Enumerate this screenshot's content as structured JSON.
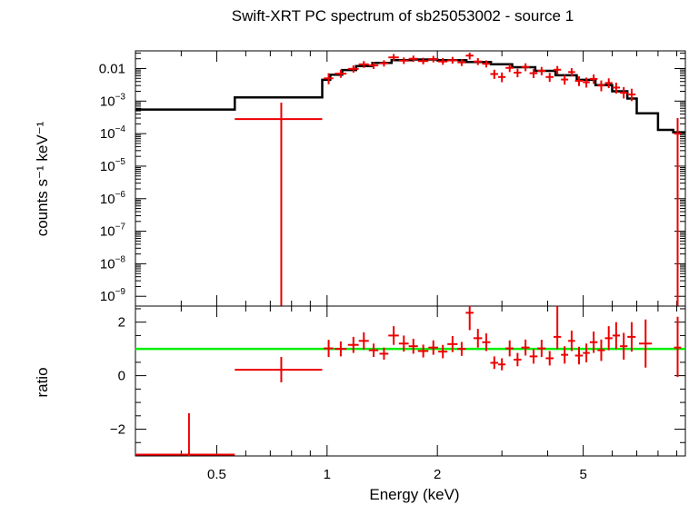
{
  "title": "Swift-XRT PC spectrum of sb25053002 - source 1",
  "colors": {
    "data": "#ee0000",
    "model": "#000000",
    "ratio_line": "#00ee00",
    "axes": "#000000"
  },
  "chart_data": [
    {
      "type": "line",
      "panel": "spectrum",
      "xlabel": "Energy (keV)",
      "ylabel": "counts s⁻¹ keV⁻¹",
      "xscale": "log",
      "yscale": "log",
      "xlim": [
        0.3,
        9.5
      ],
      "ylim": [
        5e-10,
        0.035
      ],
      "ytick_labels": [
        {
          "value": 0.01,
          "label": "0.01",
          "base": "",
          "exp": ""
        },
        {
          "value": 0.001,
          "label": "",
          "base": "10",
          "exp": "−3"
        },
        {
          "value": 0.0001,
          "label": "",
          "base": "10",
          "exp": "−4"
        },
        {
          "value": 1e-05,
          "label": "",
          "base": "10",
          "exp": "−5"
        },
        {
          "value": 1e-06,
          "label": "",
          "base": "10",
          "exp": "−6"
        },
        {
          "value": 1e-07,
          "label": "",
          "base": "10",
          "exp": "−7"
        },
        {
          "value": 1e-08,
          "label": "",
          "base": "10",
          "exp": "−8"
        },
        {
          "value": 1e-09,
          "label": "",
          "base": "10",
          "exp": "−9"
        }
      ],
      "model_steps": [
        {
          "x0": 0.3,
          "x1": 0.56,
          "y": 0.00055
        },
        {
          "x0": 0.56,
          "x1": 0.97,
          "y": 0.0013
        },
        {
          "x0": 0.97,
          "x1": 1.02,
          "y": 0.0045
        },
        {
          "x0": 1.02,
          "x1": 1.1,
          "y": 0.0065
        },
        {
          "x0": 1.1,
          "x1": 1.2,
          "y": 0.009
        },
        {
          "x0": 1.2,
          "x1": 1.33,
          "y": 0.012
        },
        {
          "x0": 1.33,
          "x1": 1.5,
          "y": 0.015
        },
        {
          "x0": 1.5,
          "x1": 1.7,
          "y": 0.018
        },
        {
          "x0": 1.7,
          "x1": 2.0,
          "y": 0.019
        },
        {
          "x0": 2.0,
          "x1": 2.4,
          "y": 0.018
        },
        {
          "x0": 2.4,
          "x1": 2.8,
          "y": 0.016
        },
        {
          "x0": 2.8,
          "x1": 3.2,
          "y": 0.0135
        },
        {
          "x0": 3.2,
          "x1": 3.7,
          "y": 0.011
        },
        {
          "x0": 3.7,
          "x1": 4.2,
          "y": 0.0085
        },
        {
          "x0": 4.2,
          "x1": 4.8,
          "y": 0.0062
        },
        {
          "x0": 4.8,
          "x1": 5.4,
          "y": 0.0045
        },
        {
          "x0": 5.4,
          "x1": 6.0,
          "y": 0.0031
        },
        {
          "x0": 6.0,
          "x1": 6.6,
          "y": 0.002
        },
        {
          "x0": 6.6,
          "x1": 7.0,
          "y": 0.0012
        },
        {
          "x0": 7.0,
          "x1": 8.0,
          "y": 0.00042
        },
        {
          "x0": 8.0,
          "x1": 8.8,
          "y": 0.00013
        },
        {
          "x0": 8.8,
          "x1": 9.5,
          "y": 0.00011
        }
      ],
      "points": [
        {
          "x": 0.75,
          "xlo": 0.56,
          "xhi": 0.97,
          "y": 0.00028,
          "ylo": 5e-10,
          "yhi": 0.0009
        },
        {
          "x": 1.01,
          "xlo": 0.98,
          "xhi": 1.04,
          "y": 0.005,
          "ylo": 0.0033,
          "yhi": 0.0072
        },
        {
          "x": 1.09,
          "xlo": 1.05,
          "xhi": 1.13,
          "y": 0.007,
          "ylo": 0.0052,
          "yhi": 0.0093
        },
        {
          "x": 1.18,
          "xlo": 1.14,
          "xhi": 1.22,
          "y": 0.0098,
          "ylo": 0.0075,
          "yhi": 0.0125
        },
        {
          "x": 1.26,
          "xlo": 1.22,
          "xhi": 1.3,
          "y": 0.0135,
          "ylo": 0.0105,
          "yhi": 0.017
        },
        {
          "x": 1.34,
          "xlo": 1.3,
          "xhi": 1.38,
          "y": 0.0125,
          "ylo": 0.0097,
          "yhi": 0.0158
        },
        {
          "x": 1.43,
          "xlo": 1.39,
          "xhi": 1.47,
          "y": 0.0145,
          "ylo": 0.0115,
          "yhi": 0.018
        },
        {
          "x": 1.52,
          "xlo": 1.47,
          "xhi": 1.57,
          "y": 0.022,
          "ylo": 0.017,
          "yhi": 0.028
        },
        {
          "x": 1.62,
          "xlo": 1.57,
          "xhi": 1.67,
          "y": 0.0175,
          "ylo": 0.0138,
          "yhi": 0.022
        },
        {
          "x": 1.72,
          "xlo": 1.67,
          "xhi": 1.77,
          "y": 0.02,
          "ylo": 0.016,
          "yhi": 0.025
        },
        {
          "x": 1.83,
          "xlo": 1.77,
          "xhi": 1.89,
          "y": 0.017,
          "ylo": 0.0135,
          "yhi": 0.0215
        },
        {
          "x": 1.95,
          "xlo": 1.89,
          "xhi": 2.01,
          "y": 0.0195,
          "ylo": 0.0155,
          "yhi": 0.0245
        },
        {
          "x": 2.07,
          "xlo": 2.01,
          "xhi": 2.13,
          "y": 0.0165,
          "ylo": 0.013,
          "yhi": 0.021
        },
        {
          "x": 2.2,
          "xlo": 2.13,
          "xhi": 2.27,
          "y": 0.018,
          "ylo": 0.0142,
          "yhi": 0.0228
        },
        {
          "x": 2.33,
          "xlo": 2.27,
          "xhi": 2.39,
          "y": 0.0155,
          "ylo": 0.012,
          "yhi": 0.0195
        },
        {
          "x": 2.45,
          "xlo": 2.39,
          "xhi": 2.51,
          "y": 0.025,
          "ylo": 0.019,
          "yhi": 0.031
        },
        {
          "x": 2.58,
          "xlo": 2.51,
          "xhi": 2.65,
          "y": 0.0165,
          "ylo": 0.0128,
          "yhi": 0.021
        },
        {
          "x": 2.72,
          "xlo": 2.65,
          "xhi": 2.79,
          "y": 0.014,
          "ylo": 0.0108,
          "yhi": 0.0178
        },
        {
          "x": 2.86,
          "xlo": 2.79,
          "xhi": 2.93,
          "y": 0.0068,
          "ylo": 0.0048,
          "yhi": 0.0092
        },
        {
          "x": 3.0,
          "xlo": 2.93,
          "xhi": 3.07,
          "y": 0.0055,
          "ylo": 0.0038,
          "yhi": 0.0076
        },
        {
          "x": 3.15,
          "xlo": 3.07,
          "xhi": 3.23,
          "y": 0.0105,
          "ylo": 0.0078,
          "yhi": 0.0135
        },
        {
          "x": 3.31,
          "xlo": 3.23,
          "xhi": 3.39,
          "y": 0.0075,
          "ylo": 0.0054,
          "yhi": 0.0099
        },
        {
          "x": 3.48,
          "xlo": 3.39,
          "xhi": 3.57,
          "y": 0.0112,
          "ylo": 0.0083,
          "yhi": 0.0145
        },
        {
          "x": 3.66,
          "xlo": 3.57,
          "xhi": 3.75,
          "y": 0.0072,
          "ylo": 0.0051,
          "yhi": 0.0096
        },
        {
          "x": 3.85,
          "xlo": 3.75,
          "xhi": 3.95,
          "y": 0.0085,
          "ylo": 0.0062,
          "yhi": 0.0112
        },
        {
          "x": 4.05,
          "xlo": 3.95,
          "xhi": 4.15,
          "y": 0.0055,
          "ylo": 0.0039,
          "yhi": 0.0074
        },
        {
          "x": 4.25,
          "xlo": 4.15,
          "xhi": 4.35,
          "y": 0.0092,
          "ylo": 0.0068,
          "yhi": 0.012
        },
        {
          "x": 4.45,
          "xlo": 4.35,
          "xhi": 4.55,
          "y": 0.0046,
          "ylo": 0.0032,
          "yhi": 0.0063
        },
        {
          "x": 4.65,
          "xlo": 4.55,
          "xhi": 4.75,
          "y": 0.0078,
          "ylo": 0.0057,
          "yhi": 0.0103
        },
        {
          "x": 4.87,
          "xlo": 4.75,
          "xhi": 4.99,
          "y": 0.0042,
          "ylo": 0.0029,
          "yhi": 0.0058
        },
        {
          "x": 5.1,
          "xlo": 4.99,
          "xhi": 5.21,
          "y": 0.0038,
          "ylo": 0.0026,
          "yhi": 0.0053
        },
        {
          "x": 5.34,
          "xlo": 5.21,
          "xhi": 5.47,
          "y": 0.0048,
          "ylo": 0.0034,
          "yhi": 0.0066
        },
        {
          "x": 5.6,
          "xlo": 5.47,
          "xhi": 5.73,
          "y": 0.003,
          "ylo": 0.002,
          "yhi": 0.0043
        },
        {
          "x": 5.87,
          "xlo": 5.73,
          "xhi": 6.01,
          "y": 0.0036,
          "ylo": 0.0025,
          "yhi": 0.005
        },
        {
          "x": 6.15,
          "xlo": 6.01,
          "xhi": 6.3,
          "y": 0.0026,
          "ylo": 0.0017,
          "yhi": 0.0037
        },
        {
          "x": 6.45,
          "xlo": 6.3,
          "xhi": 6.6,
          "y": 0.0018,
          "ylo": 0.0012,
          "yhi": 0.0027
        },
        {
          "x": 6.78,
          "xlo": 6.6,
          "xhi": 6.95,
          "y": 0.0016,
          "ylo": 0.001,
          "yhi": 0.0024
        },
        {
          "x": 9.05,
          "xlo": 8.85,
          "xhi": 9.25,
          "y": 0.0001,
          "ylo": 5e-10,
          "yhi": 0.0003
        }
      ]
    },
    {
      "type": "scatter",
      "panel": "ratio",
      "xlabel": "Energy (keV)",
      "ylabel": "ratio",
      "xscale": "log",
      "yscale": "linear",
      "xlim": [
        0.3,
        9.5
      ],
      "ylim": [
        -3.0,
        2.6
      ],
      "xtick_labels": [
        {
          "value": 0.5,
          "label": "0.5"
        },
        {
          "value": 1,
          "label": "1"
        },
        {
          "value": 2,
          "label": "2"
        },
        {
          "value": 5,
          "label": "5"
        }
      ],
      "ytick_labels": [
        {
          "value": 2,
          "label": "2"
        },
        {
          "value": 0,
          "label": "0"
        },
        {
          "value": -2,
          "label": "−2"
        }
      ],
      "reference_line": 1.0,
      "points": [
        {
          "x": 0.42,
          "xlo": 0.3,
          "xhi": 0.56,
          "y": -2.95,
          "ylo": -3.3,
          "yhi": -1.4
        },
        {
          "x": 0.75,
          "xlo": 0.56,
          "xhi": 0.97,
          "y": 0.22,
          "ylo": -0.25,
          "yhi": 0.7
        },
        {
          "x": 1.01,
          "xlo": 0.98,
          "xhi": 1.04,
          "y": 1.02,
          "ylo": 0.7,
          "yhi": 1.34
        },
        {
          "x": 1.09,
          "xlo": 1.05,
          "xhi": 1.13,
          "y": 1.0,
          "ylo": 0.72,
          "yhi": 1.28
        },
        {
          "x": 1.18,
          "xlo": 1.14,
          "xhi": 1.22,
          "y": 1.15,
          "ylo": 0.85,
          "yhi": 1.45
        },
        {
          "x": 1.26,
          "xlo": 1.22,
          "xhi": 1.3,
          "y": 1.3,
          "ylo": 0.98,
          "yhi": 1.62
        },
        {
          "x": 1.34,
          "xlo": 1.3,
          "xhi": 1.38,
          "y": 0.95,
          "ylo": 0.7,
          "yhi": 1.2
        },
        {
          "x": 1.43,
          "xlo": 1.39,
          "xhi": 1.47,
          "y": 0.82,
          "ylo": 0.6,
          "yhi": 1.05
        },
        {
          "x": 1.52,
          "xlo": 1.47,
          "xhi": 1.57,
          "y": 1.5,
          "ylo": 1.15,
          "yhi": 1.85
        },
        {
          "x": 1.62,
          "xlo": 1.57,
          "xhi": 1.67,
          "y": 1.2,
          "ylo": 0.9,
          "yhi": 1.5
        },
        {
          "x": 1.72,
          "xlo": 1.67,
          "xhi": 1.77,
          "y": 1.1,
          "ylo": 0.82,
          "yhi": 1.38
        },
        {
          "x": 1.83,
          "xlo": 1.77,
          "xhi": 1.89,
          "y": 0.92,
          "ylo": 0.68,
          "yhi": 1.16
        },
        {
          "x": 1.95,
          "xlo": 1.89,
          "xhi": 2.01,
          "y": 1.05,
          "ylo": 0.78,
          "yhi": 1.32
        },
        {
          "x": 2.07,
          "xlo": 2.01,
          "xhi": 2.13,
          "y": 0.9,
          "ylo": 0.65,
          "yhi": 1.15
        },
        {
          "x": 2.2,
          "xlo": 2.13,
          "xhi": 2.27,
          "y": 1.18,
          "ylo": 0.88,
          "yhi": 1.48
        },
        {
          "x": 2.33,
          "xlo": 2.27,
          "xhi": 2.39,
          "y": 1.0,
          "ylo": 0.74,
          "yhi": 1.26
        },
        {
          "x": 2.45,
          "xlo": 2.39,
          "xhi": 2.51,
          "y": 2.35,
          "ylo": 1.7,
          "yhi": 2.6
        },
        {
          "x": 2.58,
          "xlo": 2.51,
          "xhi": 2.65,
          "y": 1.4,
          "ylo": 1.05,
          "yhi": 1.75
        },
        {
          "x": 2.72,
          "xlo": 2.65,
          "xhi": 2.79,
          "y": 1.25,
          "ylo": 0.92,
          "yhi": 1.58
        },
        {
          "x": 2.86,
          "xlo": 2.79,
          "xhi": 2.93,
          "y": 0.48,
          "ylo": 0.25,
          "yhi": 0.72
        },
        {
          "x": 3.0,
          "xlo": 2.93,
          "xhi": 3.07,
          "y": 0.42,
          "ylo": 0.2,
          "yhi": 0.65
        },
        {
          "x": 3.15,
          "xlo": 3.07,
          "xhi": 3.23,
          "y": 1.02,
          "ylo": 0.72,
          "yhi": 1.32
        },
        {
          "x": 3.31,
          "xlo": 3.23,
          "xhi": 3.39,
          "y": 0.6,
          "ylo": 0.35,
          "yhi": 0.85
        },
        {
          "x": 3.48,
          "xlo": 3.39,
          "xhi": 3.57,
          "y": 1.05,
          "ylo": 0.75,
          "yhi": 1.35
        },
        {
          "x": 3.66,
          "xlo": 3.57,
          "xhi": 3.75,
          "y": 0.72,
          "ylo": 0.45,
          "yhi": 0.99
        },
        {
          "x": 3.85,
          "xlo": 3.75,
          "xhi": 3.95,
          "y": 1.02,
          "ylo": 0.7,
          "yhi": 1.34
        },
        {
          "x": 4.05,
          "xlo": 3.95,
          "xhi": 4.15,
          "y": 0.65,
          "ylo": 0.38,
          "yhi": 0.92
        },
        {
          "x": 4.25,
          "xlo": 4.15,
          "xhi": 4.35,
          "y": 1.45,
          "ylo": 1.0,
          "yhi": 2.6
        },
        {
          "x": 4.45,
          "xlo": 4.35,
          "xhi": 4.55,
          "y": 0.78,
          "ylo": 0.45,
          "yhi": 1.1
        },
        {
          "x": 4.65,
          "xlo": 4.55,
          "xhi": 4.75,
          "y": 1.3,
          "ylo": 0.92,
          "yhi": 1.68
        },
        {
          "x": 4.87,
          "xlo": 4.75,
          "xhi": 4.99,
          "y": 0.75,
          "ylo": 0.42,
          "yhi": 1.08
        },
        {
          "x": 5.1,
          "xlo": 4.99,
          "xhi": 5.21,
          "y": 0.85,
          "ylo": 0.5,
          "yhi": 1.2
        },
        {
          "x": 5.34,
          "xlo": 5.21,
          "xhi": 5.47,
          "y": 1.25,
          "ylo": 0.85,
          "yhi": 1.65
        },
        {
          "x": 5.6,
          "xlo": 5.47,
          "xhi": 5.73,
          "y": 0.95,
          "ylo": 0.55,
          "yhi": 1.35
        },
        {
          "x": 5.87,
          "xlo": 5.73,
          "xhi": 6.01,
          "y": 1.4,
          "ylo": 0.95,
          "yhi": 1.85
        },
        {
          "x": 6.15,
          "xlo": 6.01,
          "xhi": 6.3,
          "y": 1.5,
          "ylo": 1.0,
          "yhi": 2.0
        },
        {
          "x": 6.45,
          "xlo": 6.3,
          "xhi": 6.6,
          "y": 1.1,
          "ylo": 0.6,
          "yhi": 1.6
        },
        {
          "x": 6.78,
          "xlo": 6.6,
          "xhi": 6.95,
          "y": 1.45,
          "ylo": 0.9,
          "yhi": 2.0
        },
        {
          "x": 7.4,
          "xlo": 7.1,
          "xhi": 7.7,
          "y": 1.2,
          "ylo": 0.3,
          "yhi": 2.1
        },
        {
          "x": 9.05,
          "xlo": 8.85,
          "xhi": 9.25,
          "y": 1.05,
          "ylo": -0.05,
          "yhi": 2.2
        }
      ]
    }
  ]
}
